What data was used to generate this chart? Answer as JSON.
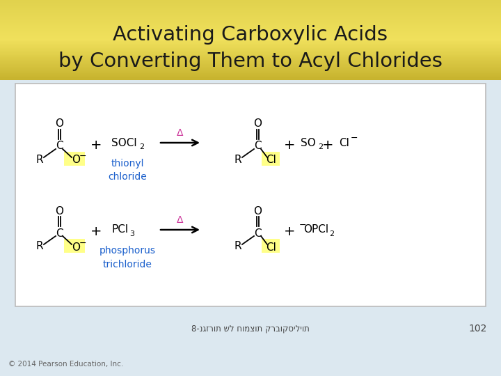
{
  "title_line1": "Activating Carboxylic Acids",
  "title_line2": "by Converting Them to Acyl Chlorides",
  "title_color": "#1a1a1a",
  "body_bg": "#dce8f0",
  "reaction_bg": "#ffffff",
  "reaction_border": "#bbbbbb",
  "footer_hebrew": "8-נגזרות של חומצות קרבוקסיליות",
  "footer_number": "102",
  "footer_copyright": "© 2014 Pearson Education, Inc.",
  "thionyl_label": "thionyl\nchloride",
  "phosphorus_label": "phosphorus\ntrichloride",
  "label_color": "#1a5fcc",
  "delta_color": "#cc3399",
  "highlight_yellow": "#ffff88",
  "title_grad_top": "#c8b030",
  "title_grad_mid": "#f0e060",
  "title_grad_bot": "#e8d050"
}
